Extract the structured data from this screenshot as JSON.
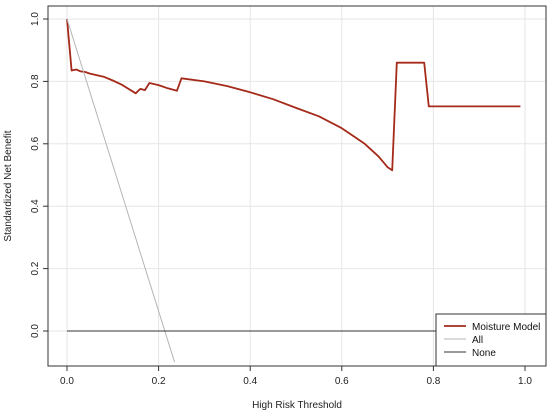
{
  "chart_data": {
    "type": "line",
    "title": "",
    "xlabel": "High Risk Threshold",
    "ylabel": "Standardized Net Benefit",
    "xlim": [
      0,
      1
    ],
    "ylim": [
      -0.1,
      1.0
    ],
    "x_ticks": [
      0.0,
      0.2,
      0.4,
      0.6,
      0.8,
      1.0
    ],
    "x_tick_labels": [
      "0.0",
      "0.2",
      "0.4",
      "0.6",
      "0.8",
      "1.0"
    ],
    "y_ticks": [
      0.0,
      0.2,
      0.4,
      0.6,
      0.8,
      1.0
    ],
    "y_tick_labels": [
      "0.0",
      "0.2",
      "0.4",
      "0.6",
      "0.8",
      "1.0"
    ],
    "grid": true,
    "legend_position": "bottom-right",
    "series": [
      {
        "name": "Moisture Model",
        "color": "#a52a1a",
        "points": [
          [
            0.0,
            1.0
          ],
          [
            0.01,
            0.835
          ],
          [
            0.02,
            0.838
          ],
          [
            0.03,
            0.832
          ],
          [
            0.04,
            0.83
          ],
          [
            0.05,
            0.825
          ],
          [
            0.08,
            0.815
          ],
          [
            0.1,
            0.803
          ],
          [
            0.12,
            0.789
          ],
          [
            0.15,
            0.762
          ],
          [
            0.16,
            0.776
          ],
          [
            0.17,
            0.772
          ],
          [
            0.18,
            0.795
          ],
          [
            0.2,
            0.788
          ],
          [
            0.22,
            0.778
          ],
          [
            0.24,
            0.77
          ],
          [
            0.25,
            0.81
          ],
          [
            0.3,
            0.8
          ],
          [
            0.35,
            0.785
          ],
          [
            0.4,
            0.765
          ],
          [
            0.45,
            0.743
          ],
          [
            0.5,
            0.715
          ],
          [
            0.55,
            0.688
          ],
          [
            0.6,
            0.65
          ],
          [
            0.65,
            0.6
          ],
          [
            0.68,
            0.56
          ],
          [
            0.7,
            0.525
          ],
          [
            0.71,
            0.515
          ],
          [
            0.72,
            0.86
          ],
          [
            0.78,
            0.86
          ],
          [
            0.79,
            0.72
          ],
          [
            0.99,
            0.72
          ]
        ]
      },
      {
        "name": "All",
        "color": "#b5b5b5",
        "points": [
          [
            0.0,
            1.0
          ],
          [
            0.235,
            -0.1
          ]
        ]
      },
      {
        "name": "None",
        "color": "#333333",
        "points": [
          [
            0.0,
            0.0
          ],
          [
            0.99,
            0.0
          ]
        ]
      }
    ]
  }
}
